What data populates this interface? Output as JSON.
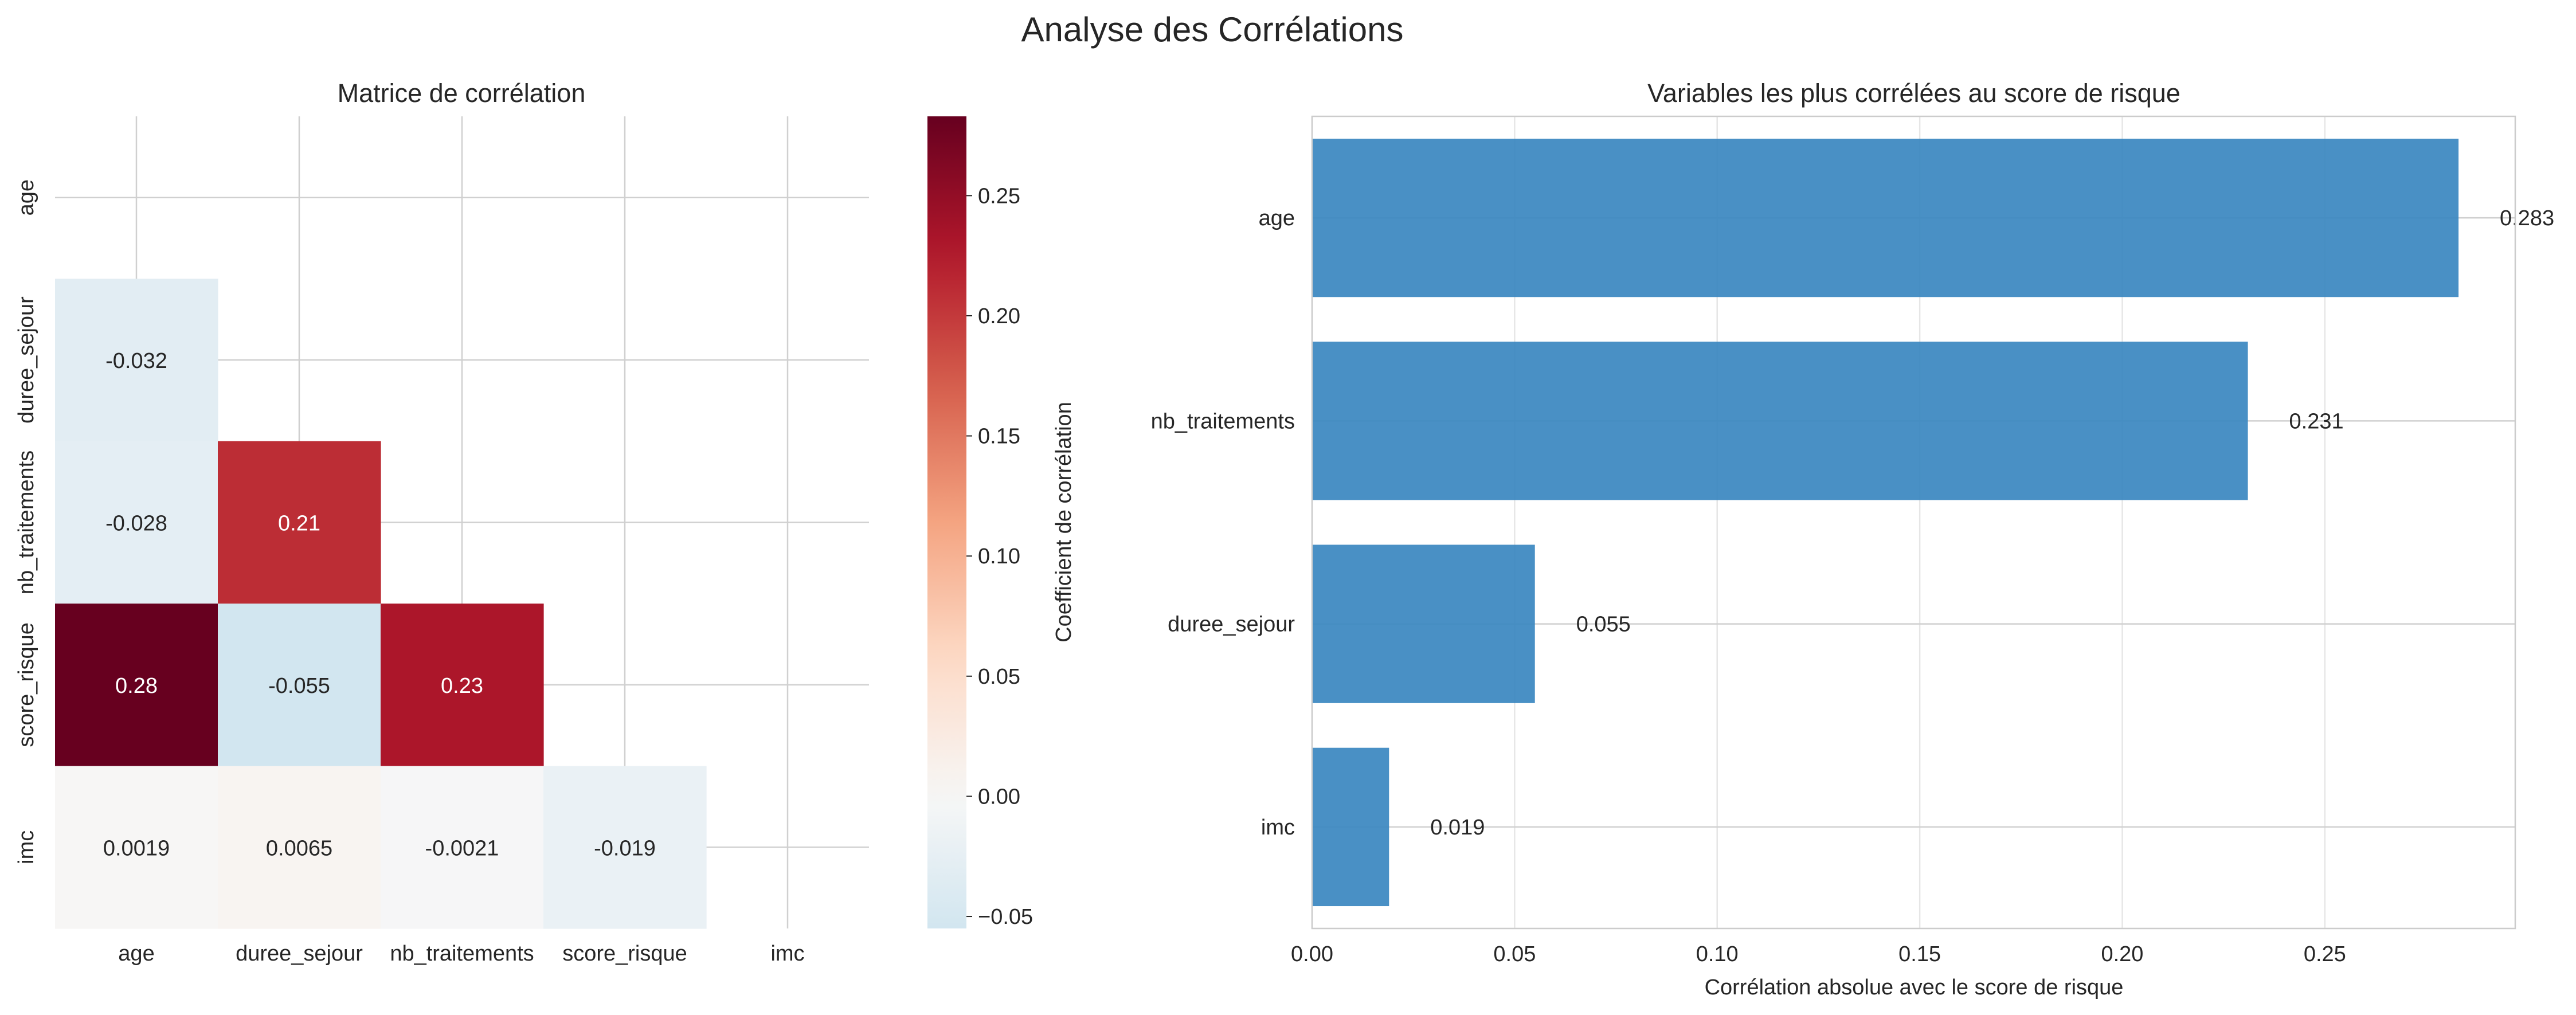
{
  "figure_title": "Analyse des Corrélations",
  "chart_data": [
    {
      "type": "heatmap",
      "title": "Matrice de corrélation",
      "variables": [
        "age",
        "duree_sejour",
        "nb_traitements",
        "score_risque",
        "imc"
      ],
      "mask": "upper triangle including diagonal",
      "cells": [
        {
          "row": "duree_sejour",
          "col": "age",
          "value": -0.032,
          "label": "-0.032"
        },
        {
          "row": "nb_traitements",
          "col": "age",
          "value": -0.028,
          "label": "-0.028"
        },
        {
          "row": "nb_traitements",
          "col": "duree_sejour",
          "value": 0.21,
          "label": "0.21"
        },
        {
          "row": "score_risque",
          "col": "age",
          "value": 0.283,
          "label": "0.28"
        },
        {
          "row": "score_risque",
          "col": "duree_sejour",
          "value": -0.055,
          "label": "-0.055"
        },
        {
          "row": "score_risque",
          "col": "nb_traitements",
          "value": 0.231,
          "label": "0.23"
        },
        {
          "row": "imc",
          "col": "age",
          "value": 0.0019,
          "label": "0.0019"
        },
        {
          "row": "imc",
          "col": "duree_sejour",
          "value": 0.0065,
          "label": "0.0065"
        },
        {
          "row": "imc",
          "col": "nb_traitements",
          "value": -0.0021,
          "label": "-0.0021"
        },
        {
          "row": "imc",
          "col": "score_risque",
          "value": -0.019,
          "label": "-0.019"
        }
      ],
      "colormap": "RdBu_r",
      "colorbar": {
        "label": "Coefficient de corrélation",
        "vmin": -0.055,
        "vmax": 0.283,
        "ticks": [
          -0.05,
          0.0,
          0.05,
          0.1,
          0.15,
          0.2,
          0.25
        ],
        "tick_labels": [
          "−0.05",
          "0.00",
          "0.05",
          "0.10",
          "0.15",
          "0.20",
          "0.25"
        ]
      },
      "grid": true
    },
    {
      "type": "bar",
      "orientation": "horizontal",
      "title": "Variables les plus corrélées au score de risque",
      "categories": [
        "age",
        "nb_traitements",
        "duree_sejour",
        "imc"
      ],
      "values": [
        0.283,
        0.231,
        0.055,
        0.019
      ],
      "value_labels": [
        "0.283",
        "0.231",
        "0.055",
        "0.019"
      ],
      "xlabel": "Corrélation absolue avec le score de risque",
      "ylabel": "",
      "xlim": [
        0,
        0.297
      ],
      "x_ticks": [
        0.0,
        0.05,
        0.1,
        0.15,
        0.2,
        0.25
      ],
      "x_tick_labels": [
        "0.00",
        "0.05",
        "0.10",
        "0.15",
        "0.20",
        "0.25"
      ],
      "bar_color": "#3a87c0",
      "grid": true
    }
  ]
}
